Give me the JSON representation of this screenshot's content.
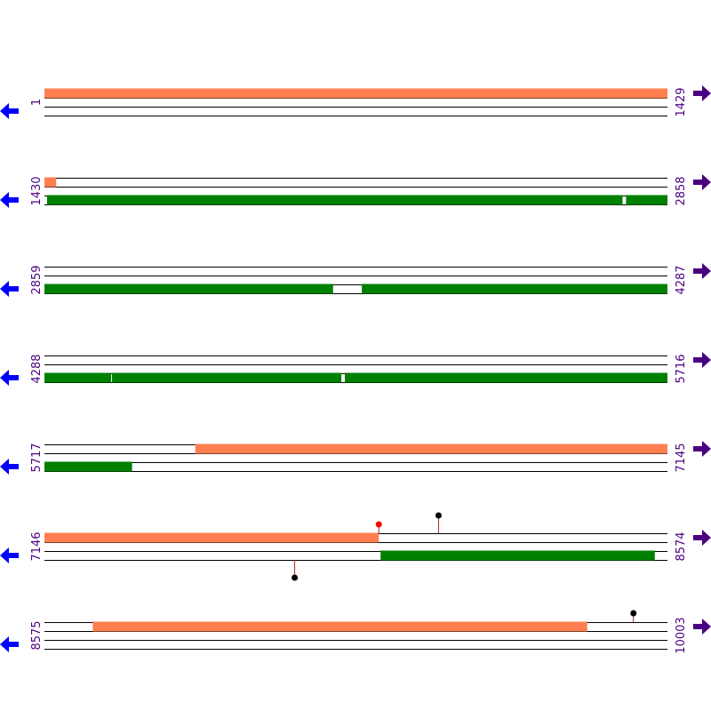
{
  "colors": {
    "line": "#000000",
    "feature_salmon": "#ff7f50",
    "feature_green": "#008000",
    "start_label": "#4b0082",
    "end_label": "#4b0082",
    "left_arrow": "#0000ff",
    "right_arrow": "#4b0082",
    "stem": "#b22222",
    "marker_black": "#000000",
    "marker_red": "#ff0000"
  },
  "icons": {
    "left": "arrow-left-icon",
    "right": "arrow-right-icon"
  },
  "rows": [
    {
      "start_label": "1",
      "end_label": "1429",
      "start": 1,
      "end": 1429,
      "features": [
        {
          "strand": "top",
          "color": "salmon",
          "from": 1,
          "to": 1429
        }
      ],
      "markers": []
    },
    {
      "start_label": "1430",
      "end_label": "2858",
      "start": 1430,
      "end": 2858,
      "features": [
        {
          "strand": "top",
          "color": "salmon",
          "from": 1430,
          "to": 1456
        },
        {
          "strand": "bottom",
          "color": "green",
          "from": 1436,
          "to": 2858,
          "gaps": [
            [
              2755,
              2764
            ]
          ]
        }
      ],
      "markers": []
    },
    {
      "start_label": "2859",
      "end_label": "4287",
      "start": 2859,
      "end": 4287,
      "features": [
        {
          "strand": "bottom",
          "color": "green",
          "from": 2859,
          "to": 4287,
          "gaps": [
            [
              3520,
              3587
            ]
          ]
        }
      ],
      "markers": []
    },
    {
      "start_label": "4288",
      "end_label": "5716",
      "start": 4288,
      "end": 5716,
      "features": [
        {
          "strand": "bottom",
          "color": "green",
          "from": 4288,
          "to": 5716,
          "gaps": [
            [
              4440,
              4443
            ],
            [
              4968,
              4977
            ]
          ]
        }
      ],
      "markers": []
    },
    {
      "start_label": "5717",
      "end_label": "7145",
      "start": 5717,
      "end": 7145,
      "features": [
        {
          "strand": "top",
          "color": "salmon",
          "from": 6063,
          "to": 7145
        },
        {
          "strand": "bottom",
          "color": "green",
          "from": 5717,
          "to": 5917
        }
      ],
      "markers": []
    },
    {
      "start_label": "7146",
      "end_label": "8574",
      "start": 7146,
      "end": 8574,
      "features": [
        {
          "strand": "top",
          "color": "salmon",
          "from": 7146,
          "to": 7912
        },
        {
          "strand": "bottom",
          "color": "green",
          "from": 7917,
          "to": 8545
        }
      ],
      "markers": [
        {
          "pos": 7913,
          "side": "up",
          "height": "short",
          "color": "red"
        },
        {
          "pos": 8050,
          "side": "up",
          "height": "tall",
          "color": "black"
        },
        {
          "pos": 7720,
          "side": "down",
          "height": "tall",
          "color": "black"
        }
      ]
    },
    {
      "start_label": "8575",
      "end_label": "10003",
      "start": 8575,
      "end": 10003,
      "features": [
        {
          "strand": "top",
          "color": "salmon",
          "from": 8686,
          "to": 9819
        }
      ],
      "markers": [
        {
          "pos": 9926,
          "side": "up",
          "height": "short",
          "color": "black"
        }
      ]
    }
  ]
}
